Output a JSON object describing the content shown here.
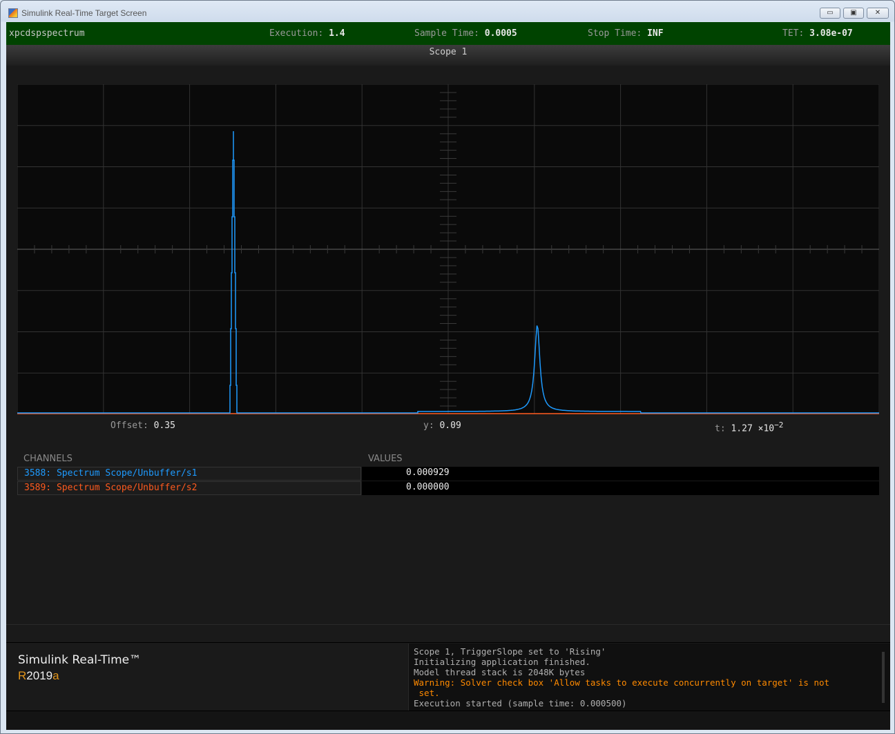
{
  "window": {
    "title": "Simulink Real-Time Target Screen",
    "minimize": "▭",
    "maximize": "▣",
    "close": "✕"
  },
  "status": {
    "model": "xpcdspspectrum",
    "execution_label": "Execution:",
    "execution": "1.4",
    "sample_label": "Sample Time:",
    "sample": "0.0005",
    "stop_label": "Stop Time:",
    "stop": "INF",
    "tet_label": "TET:",
    "tet": "3.08e-07"
  },
  "scope": {
    "title": "Scope 1",
    "offset_label": "Offset:",
    "offset": "0.35",
    "y_label": "y:",
    "y": "0.09",
    "t_label": "t:",
    "t": "1.27 ×10",
    "t_exp": "−2"
  },
  "colors": {
    "ch1": "#1e9bff",
    "ch2": "#ff5a1e",
    "grid": "#333333",
    "plot_bg": "#0a0a0a"
  },
  "table": {
    "channels_header": "CHANNELS",
    "values_header": "VALUES",
    "rows": [
      {
        "name": "3588: Spectrum Scope/Unbuffer/s1",
        "value": "0.000929"
      },
      {
        "name": "3589: Spectrum Scope/Unbuffer/s2",
        "value": "0.000000"
      }
    ]
  },
  "brand": {
    "name": "Simulink Real-Time™",
    "ver_r": "R",
    "ver_year": "2019",
    "ver_a": "a"
  },
  "log": {
    "lines": [
      "Scope 1, TriggerSlope set to 'Rising'",
      "Initializing application finished.",
      "Model thread stack is 2048K bytes"
    ],
    "warning": "Warning: Solver check box 'Allow tasks to execute concurrently on target' is not\n set.",
    "last": "Execution started (sample time: 0.000500)"
  }
}
